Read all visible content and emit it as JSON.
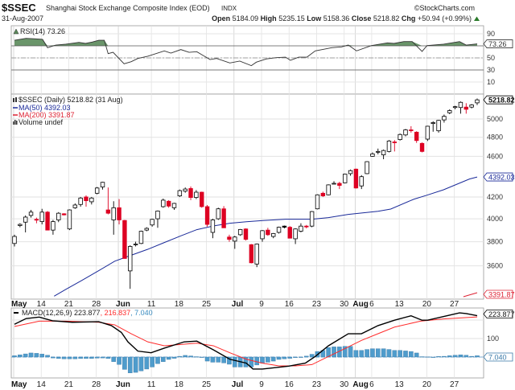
{
  "header": {
    "symbol": "$SSEC",
    "name": "Shanghai Stock Exchange Composite Index (EOD)",
    "exchange": "INDX",
    "brand": "©StockCharts.com",
    "date": "31-Aug-2007",
    "open_label": "Open",
    "open": "5184.09",
    "high_label": "High",
    "high": "5235.15",
    "low_label": "Low",
    "low": "5158.36",
    "close_label": "Close",
    "close": "5218.82",
    "chg_label": "Chg",
    "chg": "+50.94 (+0.99%)"
  },
  "legend": {
    "rsi": "RSI(14) 73.26",
    "price": "$SSEC (Daily) 5218.82 (31 Aug)",
    "ma50": "MA(50) 4392.03",
    "ma200": "MA(200) 3391.87",
    "volume": "Volume undef",
    "macd_a": "MACD(12,26,9) 223.877",
    "macd_b": ", 216.837",
    "macd_c": ", 7.040"
  },
  "colors": {
    "up": "#000000",
    "down": "#dd0022",
    "ma50": "#1a2a99",
    "ma200": "#dd2233",
    "rsi_fill": "#5a8a5a",
    "hist": "#4f9ccc",
    "signal": "#ff2a2a"
  },
  "chart_data": [
    {
      "type": "line",
      "title": "RSI(14)",
      "last": "73.26",
      "yticks": [
        "90",
        "50",
        "30",
        "10"
      ],
      "levels": [
        70,
        30,
        50
      ],
      "ylim": [
        0,
        100
      ],
      "points": [
        [
          0,
          79.3
        ],
        [
          2.1,
          82.4
        ],
        [
          3.9,
          81.6
        ],
        [
          5.1,
          80.7
        ],
        [
          6,
          66.9
        ],
        [
          7.5,
          71.3
        ],
        [
          9.3,
          72.7
        ],
        [
          11.7,
          75.8
        ],
        [
          12.9,
          74
        ],
        [
          14.1,
          76.2
        ],
        [
          15.3,
          79.3
        ],
        [
          16.3,
          79.3
        ],
        [
          17,
          57.1
        ],
        [
          17.9,
          59.3
        ],
        [
          19.9,
          40.2
        ],
        [
          21.2,
          43.8
        ],
        [
          22.4,
          49.1
        ],
        [
          24.2,
          52.7
        ],
        [
          27.2,
          61.6
        ],
        [
          28.4,
          58
        ],
        [
          30.2,
          63.8
        ],
        [
          31.7,
          59.3
        ],
        [
          33.1,
          60.2
        ],
        [
          35.5,
          47.3
        ],
        [
          36.7,
          49.1
        ],
        [
          39.1,
          41.6
        ],
        [
          40.9,
          44.7
        ],
        [
          43,
          37.1
        ],
        [
          43.9,
          42.9
        ],
        [
          45.7,
          48.2
        ],
        [
          47.5,
          50.4
        ],
        [
          49.2,
          51.3
        ],
        [
          50.1,
          46
        ],
        [
          51.6,
          51.3
        ],
        [
          53.1,
          51.3
        ],
        [
          54.6,
          61.6
        ],
        [
          56.4,
          64.7
        ],
        [
          57.6,
          66.9
        ],
        [
          59.4,
          68.2
        ],
        [
          60.6,
          71.3
        ],
        [
          62.1,
          61.6
        ],
        [
          64.8,
          70.4
        ],
        [
          67.7,
          74.9
        ],
        [
          68.9,
          74
        ],
        [
          70.7,
          77.1
        ],
        [
          72.2,
          77.1
        ],
        [
          74,
          60.7
        ],
        [
          74.9,
          70.4
        ],
        [
          77.9,
          72.7
        ],
        [
          80.8,
          77.1
        ],
        [
          82,
          71.3
        ],
        [
          84,
          73.26
        ]
      ]
    },
    {
      "type": "candlestick",
      "title": "$SSEC (Daily)",
      "scale": "log",
      "ylim": [
        3396,
        5287
      ],
      "yticks": [
        "5000",
        "4800",
        "4600",
        "4200",
        "4000",
        "3800",
        "3600"
      ],
      "last_close": "5218.82",
      "ma50_last": "4392.03",
      "ma200_last": "3391.87",
      "x_labels": [
        [
          "May",
          0,
          true
        ],
        [
          "14",
          5,
          false
        ],
        [
          "21",
          10,
          false
        ],
        [
          "28",
          15,
          false
        ],
        [
          "Jun",
          19,
          true
        ],
        [
          "11",
          25,
          false
        ],
        [
          "18",
          30,
          false
        ],
        [
          "25",
          35,
          false
        ],
        [
          "Jul",
          40,
          true
        ],
        [
          "9",
          45,
          false
        ],
        [
          "16",
          50,
          false
        ],
        [
          "23",
          55,
          false
        ],
        [
          "30",
          60,
          false
        ],
        [
          "Aug",
          62,
          true
        ],
        [
          "6",
          65,
          false
        ],
        [
          "13",
          70,
          false
        ],
        [
          "20",
          75,
          false
        ],
        [
          "27",
          80,
          false
        ]
      ],
      "ohlc": [
        [
          3785,
          3860,
          3760,
          3845
        ],
        [
          3940,
          3960,
          3925,
          3950
        ],
        [
          3970,
          4030,
          3880,
          4015
        ],
        [
          4030,
          4080,
          4010,
          4060
        ],
        [
          3995,
          4010,
          3960,
          3990
        ],
        [
          3975,
          4090,
          3950,
          4060
        ],
        [
          4060,
          4070,
          3900,
          3900
        ],
        [
          3900,
          3990,
          3860,
          3975
        ],
        [
          3990,
          4060,
          3970,
          4050
        ],
        [
          4045,
          4050,
          4030,
          4035
        ],
        [
          3910,
          4085,
          3900,
          4080
        ],
        [
          4100,
          4140,
          4090,
          4125
        ],
        [
          4130,
          4200,
          4110,
          4190
        ],
        [
          4200,
          4215,
          4110,
          4165
        ],
        [
          4155,
          4200,
          4130,
          4190
        ],
        [
          4235,
          4295,
          4225,
          4285
        ],
        [
          4295,
          4345,
          4270,
          4340
        ],
        [
          4080,
          4290,
          4040,
          4050
        ],
        [
          3990,
          4160,
          3860,
          4100
        ],
        [
          4100,
          4180,
          3950,
          3990
        ],
        [
          3985,
          3990,
          3660,
          3660
        ],
        [
          3560,
          3770,
          3420,
          3760
        ],
        [
          3780,
          3800,
          3760,
          3780
        ],
        [
          3785,
          3895,
          3780,
          3890
        ],
        [
          3900,
          3925,
          3890,
          3915
        ],
        [
          3945,
          4000,
          3930,
          3995
        ],
        [
          4000,
          4075,
          3920,
          4070
        ],
        [
          4110,
          4185,
          4100,
          4170
        ],
        [
          4160,
          4170,
          4100,
          4115
        ],
        [
          4100,
          4145,
          4080,
          4140
        ],
        [
          4210,
          4270,
          4200,
          4260
        ],
        [
          4255,
          4290,
          4240,
          4275
        ],
        [
          4280,
          4300,
          4170,
          4195
        ],
        [
          4195,
          4265,
          4180,
          4245
        ],
        [
          4245,
          4250,
          4100,
          4110
        ],
        [
          4110,
          4125,
          3930,
          3950
        ],
        [
          3880,
          4000,
          3830,
          3990
        ],
        [
          4000,
          4100,
          3990,
          4090
        ],
        [
          4090,
          4115,
          3920,
          3920
        ],
        [
          3840,
          3860,
          3800,
          3820
        ],
        [
          3805,
          3850,
          3740,
          3840
        ],
        [
          3860,
          3910,
          3850,
          3905
        ],
        [
          3910,
          3915,
          3810,
          3820
        ],
        [
          3775,
          3780,
          3620,
          3625
        ],
        [
          3615,
          3785,
          3590,
          3780
        ],
        [
          3825,
          3900,
          3800,
          3895
        ],
        [
          3900,
          3920,
          3850,
          3860
        ],
        [
          3845,
          3875,
          3830,
          3870
        ],
        [
          3880,
          3930,
          3870,
          3925
        ],
        [
          3935,
          3940,
          3915,
          3925
        ],
        [
          3925,
          3935,
          3830,
          3830
        ],
        [
          3825,
          3915,
          3780,
          3910
        ],
        [
          3890,
          3960,
          3880,
          3935
        ],
        [
          3935,
          3945,
          3915,
          3930
        ],
        [
          3935,
          4070,
          3925,
          4065
        ],
        [
          4090,
          4225,
          4085,
          4220
        ],
        [
          4235,
          4250,
          4200,
          4210
        ],
        [
          4220,
          4320,
          4215,
          4315
        ],
        [
          4330,
          4350,
          4320,
          4330
        ],
        [
          4330,
          4345,
          4275,
          4310
        ],
        [
          4335,
          4425,
          4330,
          4420
        ],
        [
          4425,
          4465,
          4405,
          4455
        ],
        [
          4470,
          4475,
          4280,
          4285
        ],
        [
          4305,
          4410,
          4275,
          4395
        ],
        [
          4425,
          4550,
          4420,
          4545
        ],
        [
          4600,
          4640,
          4595,
          4625
        ],
        [
          4650,
          4680,
          4620,
          4650
        ],
        [
          4615,
          4670,
          4570,
          4660
        ],
        [
          4650,
          4770,
          4640,
          4760
        ],
        [
          4750,
          4770,
          4650,
          4745
        ],
        [
          4775,
          4840,
          4765,
          4830
        ],
        [
          4825,
          4890,
          4810,
          4880
        ],
        [
          4880,
          4920,
          4850,
          4875
        ],
        [
          4855,
          4865,
          4740,
          4765
        ],
        [
          4735,
          4745,
          4640,
          4650
        ],
        [
          4780,
          4925,
          4760,
          4920
        ],
        [
          4950,
          4975,
          4860,
          4960
        ],
        [
          4870,
          4990,
          4850,
          4985
        ],
        [
          4990,
          5050,
          4960,
          5030
        ],
        [
          5070,
          5110,
          5055,
          5095
        ],
        [
          5130,
          5150,
          5110,
          5140
        ],
        [
          5130,
          5200,
          5060,
          5190
        ],
        [
          5135,
          5180,
          5060,
          5110
        ],
        [
          5135,
          5170,
          5120,
          5160
        ],
        [
          5184.09,
          5235.15,
          5158.36,
          5218.82
        ]
      ],
      "ma50": [
        [
          7.2,
          3364
        ],
        [
          9.3,
          3415
        ],
        [
          12.3,
          3487
        ],
        [
          15.3,
          3562
        ],
        [
          18.2,
          3638
        ],
        [
          21.2,
          3687
        ],
        [
          24.2,
          3736
        ],
        [
          27.2,
          3793
        ],
        [
          30.2,
          3850
        ],
        [
          33.1,
          3904
        ],
        [
          36.1,
          3936
        ],
        [
          39.1,
          3960
        ],
        [
          42.1,
          3974
        ],
        [
          45.1,
          3984
        ],
        [
          49.2,
          3996
        ],
        [
          54,
          3996
        ],
        [
          57,
          4010
        ],
        [
          60.6,
          4039
        ],
        [
          66,
          4068
        ],
        [
          68.3,
          4088
        ],
        [
          72.5,
          4179
        ],
        [
          74.9,
          4217
        ],
        [
          77.9,
          4268
        ],
        [
          82.6,
          4372
        ],
        [
          84,
          4392.03
        ]
      ],
      "ma200": [
        [
          81.5,
          3370
        ],
        [
          84,
          3391.87
        ]
      ]
    },
    {
      "type": "line+bar",
      "title": "MACD(12,26,9)",
      "yticks": [
        "100"
      ],
      "ylim": [
        -115,
        330
      ],
      "last": [
        "223.877",
        "216.837",
        "7.040"
      ],
      "macd": [
        [
          0,
          177
        ],
        [
          2.1,
          208
        ],
        [
          4.5,
          216
        ],
        [
          6.9,
          196
        ],
        [
          10.5,
          188
        ],
        [
          15.3,
          191
        ],
        [
          17.6,
          170
        ],
        [
          19.4,
          133
        ],
        [
          20.6,
          82
        ],
        [
          22.4,
          32
        ],
        [
          24.8,
          23
        ],
        [
          27.2,
          48
        ],
        [
          30.8,
          82
        ],
        [
          33.1,
          86
        ],
        [
          36.1,
          39
        ],
        [
          39.1,
          -12
        ],
        [
          42.1,
          -33
        ],
        [
          43.3,
          -65
        ],
        [
          45,
          -65
        ],
        [
          48,
          -55
        ],
        [
          49.8,
          -49
        ],
        [
          52.8,
          -33
        ],
        [
          54.6,
          3
        ],
        [
          57,
          61
        ],
        [
          60.6,
          126
        ],
        [
          63,
          126
        ],
        [
          66,
          170
        ],
        [
          69,
          199
        ],
        [
          72,
          223
        ],
        [
          74,
          199
        ],
        [
          75,
          199
        ],
        [
          78.5,
          223
        ],
        [
          80.8,
          239
        ],
        [
          82,
          235
        ],
        [
          84,
          223.877
        ]
      ],
      "signal": [
        [
          0,
          165
        ],
        [
          4.5,
          194
        ],
        [
          9.3,
          194
        ],
        [
          15.3,
          188
        ],
        [
          18.2,
          174
        ],
        [
          21.2,
          126
        ],
        [
          24.2,
          82
        ],
        [
          27.2,
          61
        ],
        [
          30.2,
          68
        ],
        [
          33.1,
          75
        ],
        [
          36.1,
          61
        ],
        [
          39.1,
          23
        ],
        [
          42.1,
          -12
        ],
        [
          45,
          -33
        ],
        [
          48,
          -48
        ],
        [
          51,
          -48
        ],
        [
          54,
          -41
        ],
        [
          57,
          3
        ],
        [
          60,
          46
        ],
        [
          63,
          90
        ],
        [
          66,
          126
        ],
        [
          69,
          162
        ],
        [
          73.7,
          194
        ],
        [
          77.9,
          206
        ],
        [
          84,
          216.837
        ]
      ],
      "histogram": [
        7,
        12,
        17,
        22,
        20,
        16,
        10,
        -5,
        -8,
        -10,
        -10,
        -10,
        -8,
        -8,
        -8,
        -6,
        -5,
        -8,
        -25,
        -40,
        -67,
        -86,
        -83,
        -75,
        -65,
        -54,
        -36,
        -25,
        -13,
        -7,
        4,
        9,
        6,
        2,
        -1,
        -22,
        -28,
        -28,
        -32,
        -39,
        -54,
        -54,
        -54,
        -54,
        -43,
        -33,
        -28,
        -22,
        -13,
        -10,
        -7,
        -3,
        0,
        5,
        15,
        30,
        36,
        51,
        55,
        55,
        58,
        58,
        36,
        36,
        41,
        45,
        45,
        45,
        41,
        36,
        36,
        33,
        30,
        22,
        2,
        1,
        0,
        3,
        4,
        7,
        10,
        12,
        10,
        4,
        7.04
      ]
    }
  ]
}
